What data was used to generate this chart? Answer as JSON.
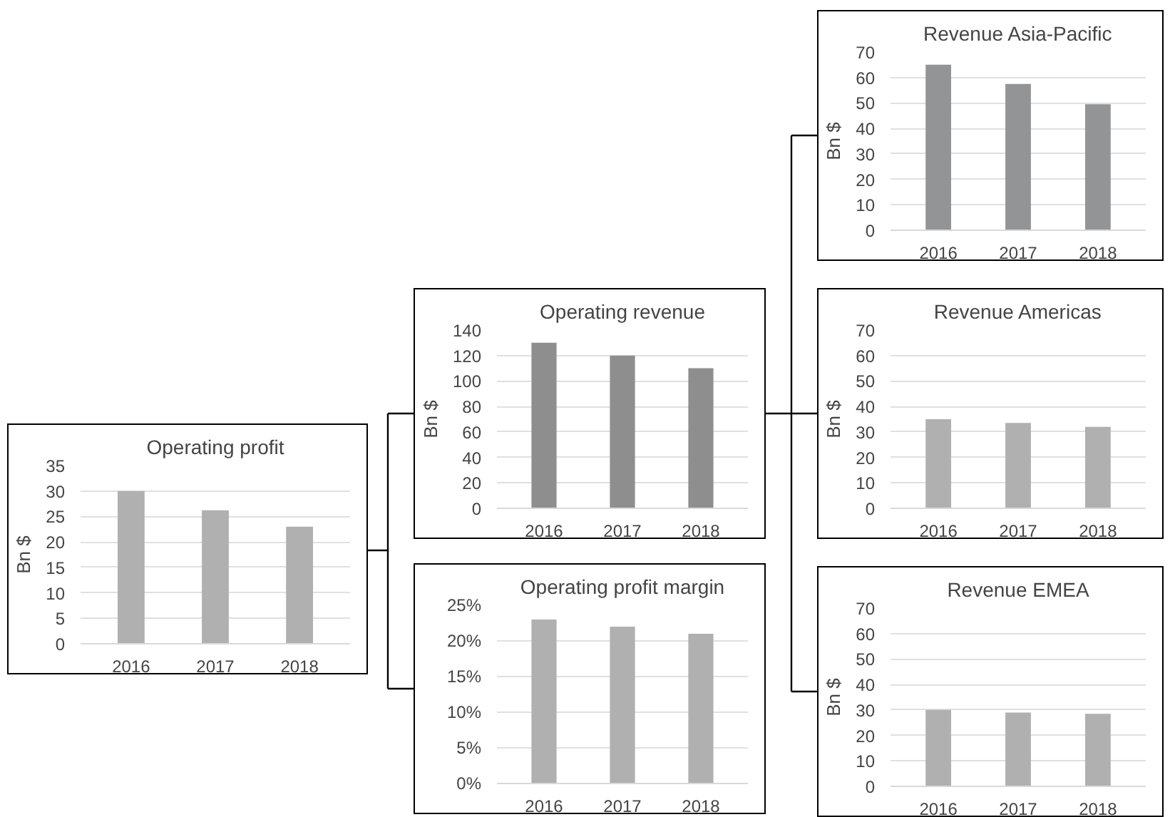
{
  "chart_data": [
    {
      "type": "bar",
      "title": "Operating profit",
      "ylabel": "Bn $",
      "categories": [
        "2016",
        "2017",
        "2018"
      ],
      "values": [
        30,
        26.2,
        23
      ],
      "color": "#b0b0b0",
      "ylim": [
        0,
        35
      ],
      "yticks": [
        0,
        5,
        10,
        15,
        20,
        25,
        30,
        35
      ],
      "grid": "y"
    },
    {
      "type": "bar",
      "title": "Operating revenue",
      "ylabel": "Bn $",
      "categories": [
        "2016",
        "2017",
        "2018"
      ],
      "values": [
        130,
        120,
        110
      ],
      "color": "#8e8e8e",
      "ylim": [
        0,
        140
      ],
      "yticks": [
        0,
        20,
        40,
        60,
        80,
        100,
        120,
        140
      ],
      "grid": "y"
    },
    {
      "type": "bar",
      "title": "Operating profit margin",
      "categories": [
        "2016",
        "2017",
        "2018"
      ],
      "values": [
        23,
        22,
        21
      ],
      "color": "#b0b0b0",
      "ylim": [
        0,
        25
      ],
      "yticks": [
        {
          "value": 0,
          "label": "0%"
        },
        {
          "value": 5,
          "label": "5%"
        },
        {
          "value": 10,
          "label": "10%"
        },
        {
          "value": 15,
          "label": "15%"
        },
        {
          "value": 20,
          "label": "20%"
        },
        {
          "value": 25,
          "label": "25%"
        }
      ],
      "grid": "y"
    },
    {
      "type": "bar",
      "title": "Revenue Asia-Pacific",
      "ylabel": "Bn $",
      "categories": [
        "2016",
        "2017",
        "2018"
      ],
      "values": [
        65,
        57.5,
        49.5
      ],
      "color": "#929496",
      "ylim": [
        0,
        70
      ],
      "yticks": [
        0,
        10,
        20,
        30,
        40,
        50,
        60,
        70
      ],
      "grid": "y"
    },
    {
      "type": "bar",
      "title": "Revenue Americas",
      "ylabel": "Bn $",
      "categories": [
        "2016",
        "2017",
        "2018"
      ],
      "values": [
        35,
        33.5,
        32
      ],
      "color": "#b0b0b0",
      "ylim": [
        0,
        70
      ],
      "yticks": [
        0,
        10,
        20,
        30,
        40,
        50,
        60,
        70
      ],
      "grid": "y"
    },
    {
      "type": "bar",
      "title": "Revenue EMEA",
      "ylabel": "Bn $",
      "categories": [
        "2016",
        "2017",
        "2018"
      ],
      "values": [
        30,
        29,
        28.5
      ],
      "color": "#b0b0b0",
      "ylim": [
        0,
        70
      ],
      "yticks": [
        0,
        10,
        20,
        30,
        40,
        50,
        60,
        70
      ],
      "grid": "y"
    }
  ]
}
